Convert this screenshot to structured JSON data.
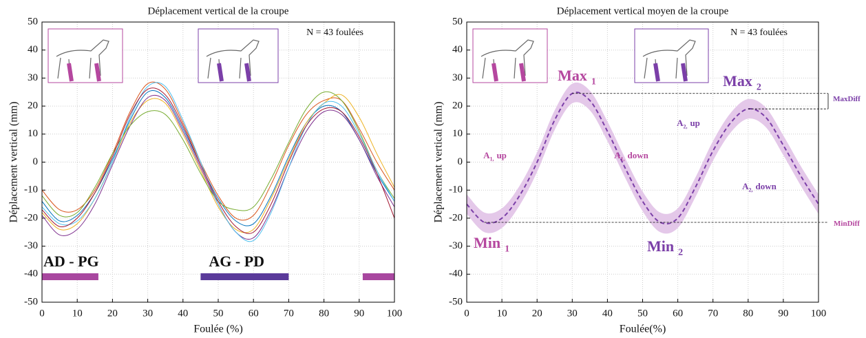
{
  "chart_data": [
    {
      "type": "line",
      "title": "Déplacement vertical de la croupe",
      "xlabel": "Foulée (%)",
      "ylabel": "Déplacement vertical (mm)",
      "n_label": "N = 43 foulées",
      "x": [
        0,
        5,
        10,
        15,
        20,
        25,
        30,
        35,
        40,
        45,
        50,
        55,
        60,
        65,
        70,
        75,
        80,
        85,
        90,
        95,
        100
      ],
      "xlim": [
        0,
        100
      ],
      "ylim": [
        -50,
        50
      ],
      "xticks": [
        0,
        10,
        20,
        30,
        40,
        50,
        60,
        70,
        80,
        90,
        100
      ],
      "yticks": [
        -50,
        -40,
        -30,
        -20,
        -10,
        0,
        10,
        20,
        30,
        40,
        50
      ],
      "grid": true,
      "series": [
        {
          "color": "#0072bd",
          "values": [
            -14,
            -21,
            -19,
            -11,
            1,
            15,
            25,
            23,
            12,
            -1,
            -13,
            -21,
            -22,
            -12,
            2,
            14,
            20,
            18,
            8,
            -4,
            -14
          ]
        },
        {
          "color": "#d95319",
          "values": [
            -10,
            -17,
            -17,
            -10,
            3,
            18,
            28,
            26,
            14,
            0,
            -12,
            -20,
            -19,
            -8,
            6,
            17,
            22,
            22,
            12,
            0,
            -10
          ]
        },
        {
          "color": "#edb120",
          "values": [
            -18,
            -24,
            -22,
            -13,
            0,
            14,
            22,
            21,
            10,
            -3,
            -16,
            -24,
            -24,
            -13,
            1,
            14,
            21,
            24,
            16,
            3,
            -9
          ]
        },
        {
          "color": "#7e2f8e",
          "values": [
            -19,
            -26,
            -24,
            -15,
            -1,
            13,
            23,
            22,
            11,
            -2,
            -15,
            -25,
            -27,
            -17,
            -2,
            11,
            18,
            17,
            8,
            -5,
            -16
          ]
        },
        {
          "color": "#77ac30",
          "values": [
            -12,
            -19,
            -18,
            -9,
            3,
            13,
            18,
            17,
            8,
            -4,
            -14,
            -17,
            -16,
            -6,
            7,
            19,
            25,
            22,
            11,
            -3,
            -13
          ]
        },
        {
          "color": "#4dbeee",
          "values": [
            -16,
            -22,
            -21,
            -13,
            0,
            16,
            27,
            27,
            15,
            0,
            -15,
            -25,
            -28,
            -18,
            -2,
            13,
            21,
            20,
            10,
            -3,
            -14
          ]
        },
        {
          "color": "#a2142f",
          "values": [
            -17,
            -23,
            -20,
            -11,
            2,
            17,
            26,
            24,
            13,
            -1,
            -14,
            -23,
            -25,
            -15,
            0,
            13,
            19,
            18,
            9,
            -4,
            -20
          ]
        }
      ],
      "phases": [
        {
          "label": "AD - PG",
          "color": "#a8479f",
          "ranges": [
            [
              0,
              16
            ],
            [
              91,
              100
            ]
          ]
        },
        {
          "label": "AG - PD",
          "color": "#5a3a9a",
          "ranges": [
            [
              45,
              70
            ]
          ]
        }
      ]
    },
    {
      "type": "line",
      "title": "Déplacement vertical moyen de la croupe",
      "xlabel": "Foulée(%)",
      "ylabel": "Déplacement vertical (mm)",
      "n_label": "N = 43 foulées",
      "x": [
        0,
        5,
        10,
        15,
        20,
        25,
        30,
        35,
        40,
        45,
        50,
        55,
        60,
        65,
        70,
        75,
        80,
        85,
        90,
        95,
        100
      ],
      "xlim": [
        0,
        100
      ],
      "ylim": [
        -50,
        50
      ],
      "xticks": [
        0,
        10,
        20,
        30,
        40,
        50,
        60,
        70,
        80,
        90,
        100
      ],
      "yticks": [
        -50,
        -40,
        -30,
        -20,
        -10,
        0,
        10,
        20,
        30,
        40,
        50
      ],
      "grid": true,
      "series": [
        {
          "color": "#7b3fa8",
          "band": 3.5,
          "band_color": "#e4c8e9",
          "values": [
            -15,
            -21.5,
            -20,
            -12,
            0,
            15,
            24.5,
            22,
            11,
            -2,
            -14,
            -21.5,
            -20,
            -9,
            4,
            14,
            19,
            16,
            6,
            -5,
            -15
          ]
        }
      ],
      "annotations": [
        {
          "text": "Max",
          "sub": "1",
          "color": "#b5479f"
        },
        {
          "text": "Max",
          "sub": "2",
          "color": "#7b3fa8"
        },
        {
          "text": "Min",
          "sub": "1",
          "color": "#b5479f"
        },
        {
          "text": "Min",
          "sub": "2",
          "color": "#7b3fa8"
        },
        {
          "text": "A",
          "sub": "1,",
          "tail": "up",
          "color": "#b5479f"
        },
        {
          "text": "A",
          "sub": "1,",
          "tail": "down",
          "color": "#b5479f"
        },
        {
          "text": "A",
          "sub": "2,",
          "tail": "up",
          "color": "#7b3fa8"
        },
        {
          "text": "A",
          "sub": "2,",
          "tail": "down",
          "color": "#7b3fa8"
        },
        {
          "text": "MaxDiff",
          "color": "#7b3fa8"
        },
        {
          "text": "MinDiff",
          "color": "#b5479f"
        }
      ]
    }
  ]
}
